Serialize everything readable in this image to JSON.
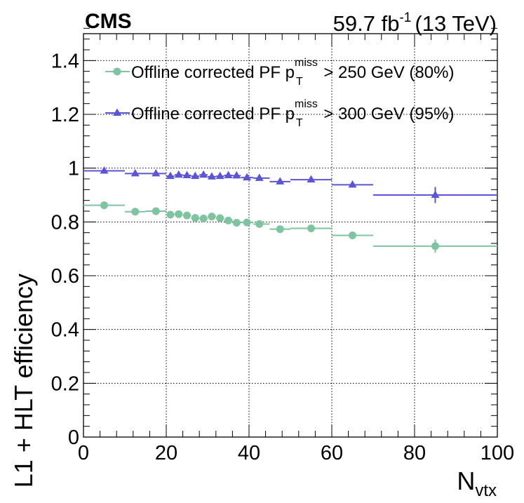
{
  "header": {
    "experiment": "CMS",
    "lumi_value": "59.7 fb",
    "lumi_exp": "-1",
    "energy": "(13 TeV)"
  },
  "axes": {
    "ylabel": "L1 + HLT efficiency",
    "xlabel_main": "N",
    "xlabel_sub": "vtx"
  },
  "legend": {
    "items": [
      {
        "prefix": "Offline corrected PF p",
        "sup": "miss",
        "sub": "T",
        "suffix": " > 250 GeV (80%)"
      },
      {
        "prefix": "Offline corrected PF p",
        "sup": "miss",
        "sub": "T",
        "suffix": " > 300 GeV (95%)"
      }
    ]
  },
  "chart_data": {
    "type": "scatter",
    "xlim": [
      0,
      100
    ],
    "ylim": [
      0,
      1.5
    ],
    "x_ticks": [
      0,
      20,
      40,
      60,
      80,
      100
    ],
    "y_ticks": [
      0,
      0.2,
      0.4,
      0.6,
      0.8,
      1,
      1.2,
      1.4
    ],
    "grid": true,
    "legend_position": "top",
    "series": [
      {
        "name": "Offline corrected PF pT miss > 250 GeV (80%)",
        "color": "#7fc4a0",
        "marker": "circle",
        "points": [
          {
            "x": 5,
            "xlo": 0,
            "xhi": 10,
            "y": 0.862,
            "err": 0.004
          },
          {
            "x": 12.5,
            "xlo": 10,
            "xhi": 15,
            "y": 0.838,
            "err": 0.004
          },
          {
            "x": 17.5,
            "xlo": 15,
            "xhi": 20,
            "y": 0.84,
            "err": 0.004
          },
          {
            "x": 21,
            "xlo": 20,
            "xhi": 22,
            "y": 0.827,
            "err": 0.004
          },
          {
            "x": 23,
            "xlo": 22,
            "xhi": 24,
            "y": 0.829,
            "err": 0.004
          },
          {
            "x": 25,
            "xlo": 24,
            "xhi": 26,
            "y": 0.824,
            "err": 0.004
          },
          {
            "x": 27,
            "xlo": 26,
            "xhi": 28,
            "y": 0.815,
            "err": 0.004
          },
          {
            "x": 29,
            "xlo": 28,
            "xhi": 30,
            "y": 0.813,
            "err": 0.004
          },
          {
            "x": 31,
            "xlo": 30,
            "xhi": 32,
            "y": 0.82,
            "err": 0.004
          },
          {
            "x": 33,
            "xlo": 32,
            "xhi": 34,
            "y": 0.814,
            "err": 0.004
          },
          {
            "x": 35,
            "xlo": 34,
            "xhi": 36,
            "y": 0.805,
            "err": 0.004
          },
          {
            "x": 37,
            "xlo": 36,
            "xhi": 38,
            "y": 0.797,
            "err": 0.004
          },
          {
            "x": 39.5,
            "xlo": 38,
            "xhi": 41,
            "y": 0.798,
            "err": 0.004
          },
          {
            "x": 42.5,
            "xlo": 41,
            "xhi": 45,
            "y": 0.792,
            "err": 0.004
          },
          {
            "x": 47.5,
            "xlo": 45,
            "xhi": 50,
            "y": 0.773,
            "err": 0.005
          },
          {
            "x": 55,
            "xlo": 50,
            "xhi": 60,
            "y": 0.776,
            "err": 0.006
          },
          {
            "x": 65,
            "xlo": 60,
            "xhi": 70,
            "y": 0.75,
            "err": 0.012
          },
          {
            "x": 85,
            "xlo": 70,
            "xhi": 100,
            "y": 0.71,
            "err": 0.025
          }
        ]
      },
      {
        "name": "Offline corrected PF pT miss > 300 GeV (95%)",
        "color": "#5a55d6",
        "marker": "triangle",
        "points": [
          {
            "x": 5,
            "xlo": 0,
            "xhi": 10,
            "y": 0.99,
            "err": 0.003
          },
          {
            "x": 12.5,
            "xlo": 10,
            "xhi": 15,
            "y": 0.98,
            "err": 0.003
          },
          {
            "x": 17.5,
            "xlo": 15,
            "xhi": 20,
            "y": 0.98,
            "err": 0.003
          },
          {
            "x": 21,
            "xlo": 20,
            "xhi": 22,
            "y": 0.97,
            "err": 0.003
          },
          {
            "x": 23,
            "xlo": 22,
            "xhi": 24,
            "y": 0.975,
            "err": 0.003
          },
          {
            "x": 25,
            "xlo": 24,
            "xhi": 26,
            "y": 0.973,
            "err": 0.003
          },
          {
            "x": 27,
            "xlo": 26,
            "xhi": 28,
            "y": 0.97,
            "err": 0.003
          },
          {
            "x": 29,
            "xlo": 28,
            "xhi": 30,
            "y": 0.975,
            "err": 0.003
          },
          {
            "x": 31,
            "xlo": 30,
            "xhi": 32,
            "y": 0.968,
            "err": 0.003
          },
          {
            "x": 33,
            "xlo": 32,
            "xhi": 34,
            "y": 0.97,
            "err": 0.003
          },
          {
            "x": 35,
            "xlo": 34,
            "xhi": 36,
            "y": 0.973,
            "err": 0.003
          },
          {
            "x": 37,
            "xlo": 36,
            "xhi": 38,
            "y": 0.972,
            "err": 0.003
          },
          {
            "x": 39.5,
            "xlo": 38,
            "xhi": 41,
            "y": 0.965,
            "err": 0.003
          },
          {
            "x": 42.5,
            "xlo": 41,
            "xhi": 45,
            "y": 0.963,
            "err": 0.003
          },
          {
            "x": 47.5,
            "xlo": 45,
            "xhi": 50,
            "y": 0.95,
            "err": 0.004
          },
          {
            "x": 55,
            "xlo": 50,
            "xhi": 60,
            "y": 0.957,
            "err": 0.005
          },
          {
            "x": 65,
            "xlo": 60,
            "xhi": 70,
            "y": 0.938,
            "err": 0.01
          },
          {
            "x": 85,
            "xlo": 70,
            "xhi": 100,
            "y": 0.9,
            "err": 0.03
          }
        ]
      }
    ]
  }
}
